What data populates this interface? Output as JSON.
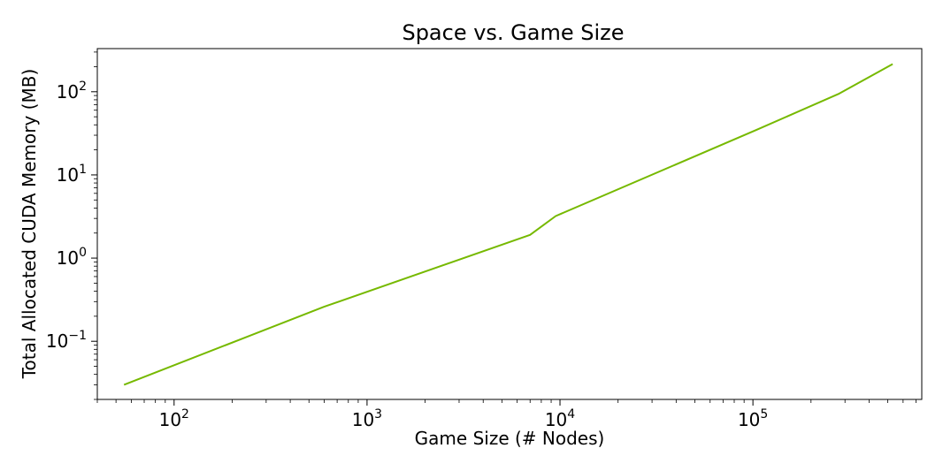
{
  "chart_data": {
    "type": "line",
    "title": "Space vs. Game Size",
    "xlabel": "Game Size (# Nodes)",
    "ylabel": "Total Allocated CUDA Memory (MB)",
    "xscale": "log",
    "yscale": "log",
    "xlim": [
      40,
      750000
    ],
    "ylim": [
      0.02,
      330
    ],
    "x_ticks": [
      100,
      1000,
      10000,
      100000
    ],
    "x_tick_labels": [
      {
        "base": "10",
        "exp": "2"
      },
      {
        "base": "10",
        "exp": "3"
      },
      {
        "base": "10",
        "exp": "4"
      },
      {
        "base": "10",
        "exp": "5"
      }
    ],
    "y_ticks": [
      0.1,
      1,
      10,
      100
    ],
    "y_tick_labels": [
      {
        "base": "10",
        "exp": "−1"
      },
      {
        "base": "10",
        "exp": "0"
      },
      {
        "base": "10",
        "exp": "1"
      },
      {
        "base": "10",
        "exp": "2"
      }
    ],
    "grid": false,
    "series": [
      {
        "color": "#76b900",
        "x": [
          55,
          600,
          7000,
          9500,
          105000,
          280000,
          530000
        ],
        "y": [
          0.03,
          0.26,
          1.9,
          3.2,
          35,
          95,
          215
        ]
      }
    ]
  }
}
